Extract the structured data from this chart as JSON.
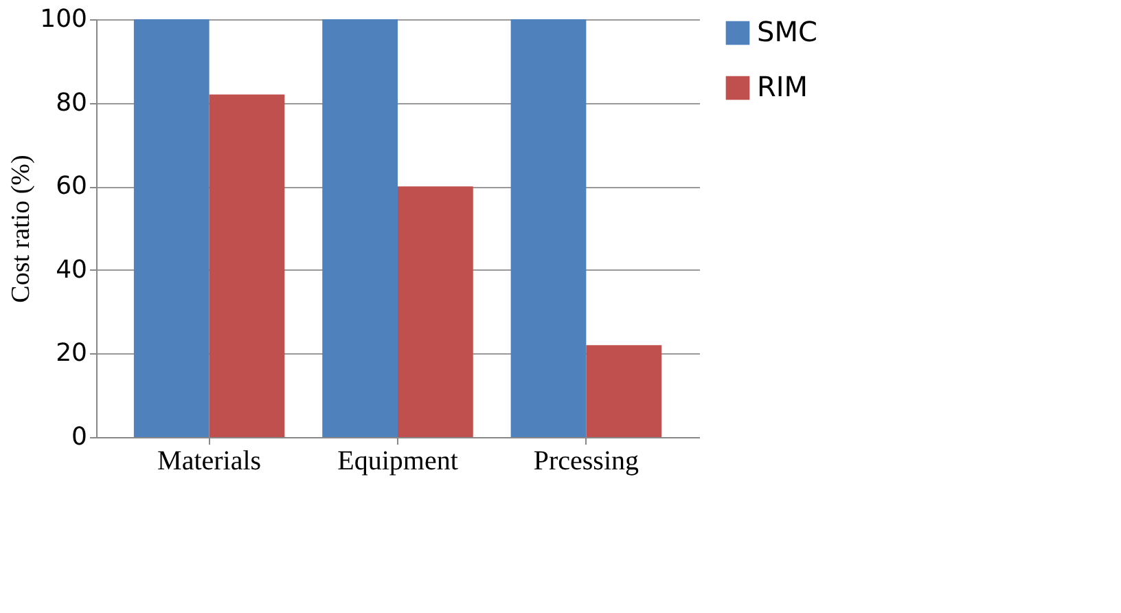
{
  "chart_data": {
    "type": "bar",
    "ylabel": "Cost ratio (%)",
    "categories": [
      "Materials",
      "Equipment",
      "Prcessing"
    ],
    "series": [
      {
        "name": "SMC",
        "color": "#4f81bd",
        "values": [
          100,
          100,
          100
        ]
      },
      {
        "name": "RIM",
        "color": "#c0504d",
        "values": [
          82,
          60,
          22
        ]
      }
    ],
    "ylim": [
      0,
      100
    ],
    "yticks": [
      0,
      20,
      40,
      60,
      80,
      100
    ],
    "grid": "y",
    "legend": "right"
  }
}
